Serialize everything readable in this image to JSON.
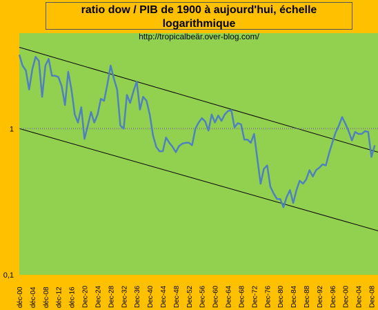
{
  "header": {
    "title": "ratio dow / PIB de 1900 à aujourd'hui, échelle logarithmique",
    "source": "http://tropicalbeär.over-blog.com/"
  },
  "colors": {
    "background": "#ffc000",
    "plot_area": "#92d050",
    "series_line": "#4f81bd",
    "trend_lines": "#000000",
    "reference_line": "#808080"
  },
  "chart_data": {
    "type": "line",
    "title": "ratio dow / PIB de 1900 à aujourd'hui, échelle logarithmique",
    "yscale": "log",
    "ylim": [
      0.1,
      4.5
    ],
    "xlim": [
      1900,
      2010
    ],
    "grid": false,
    "y_ticks": [
      {
        "value": 1,
        "label": "1"
      },
      {
        "value": 0.1,
        "label": "0,1"
      }
    ],
    "x_ticks": [
      {
        "year": 1900,
        "label": "déc-00"
      },
      {
        "year": 1904,
        "label": "déc-04"
      },
      {
        "year": 1908,
        "label": "déc-08"
      },
      {
        "year": 1912,
        "label": "déc-12"
      },
      {
        "year": 1916,
        "label": "déc-16"
      },
      {
        "year": 1920,
        "label": "Dec-20"
      },
      {
        "year": 1924,
        "label": "Dec-24"
      },
      {
        "year": 1928,
        "label": "Dec-28"
      },
      {
        "year": 1932,
        "label": "Dec-32"
      },
      {
        "year": 1936,
        "label": "Dec-36"
      },
      {
        "year": 1940,
        "label": "Dec-40"
      },
      {
        "year": 1944,
        "label": "Dec-44"
      },
      {
        "year": 1948,
        "label": "Dec-48"
      },
      {
        "year": 1952,
        "label": "Dec-52"
      },
      {
        "year": 1956,
        "label": "Dec-56"
      },
      {
        "year": 1960,
        "label": "Dec-60"
      },
      {
        "year": 1964,
        "label": "Dec-64"
      },
      {
        "year": 1968,
        "label": "Dec-68"
      },
      {
        "year": 1972,
        "label": "Dec-72"
      },
      {
        "year": 1976,
        "label": "Dec-76"
      },
      {
        "year": 1980,
        "label": "Dec-80"
      },
      {
        "year": 1984,
        "label": "Dec-84"
      },
      {
        "year": 1988,
        "label": "Dec-88"
      },
      {
        "year": 1992,
        "label": "Dec-92"
      },
      {
        "year": 1996,
        "label": "Dec-96"
      },
      {
        "year": 2000,
        "label": "Dec-00"
      },
      {
        "year": 2004,
        "label": "Dec-04"
      },
      {
        "year": 2008,
        "label": "Dec-08"
      }
    ],
    "series": [
      {
        "x": [
          1900,
          1901,
          1902,
          1903,
          1904,
          1905,
          1906,
          1907,
          1908,
          1909,
          1910,
          1911,
          1912,
          1913,
          1914,
          1915,
          1916,
          1917,
          1918,
          1919,
          1920,
          1921,
          1922,
          1923,
          1924,
          1925,
          1926,
          1927,
          1928,
          1929,
          1930,
          1931,
          1932,
          1933,
          1934,
          1935,
          1936,
          1937,
          1938,
          1939,
          1940,
          1941,
          1942,
          1943,
          1944,
          1945,
          1946,
          1947,
          1948,
          1949,
          1950,
          1951,
          1952,
          1953,
          1954,
          1955,
          1956,
          1957,
          1958,
          1959,
          1960,
          1961,
          1962,
          1963,
          1964,
          1965,
          1966,
          1967,
          1968,
          1969,
          1970,
          1971,
          1972,
          1973,
          1974,
          1975,
          1976,
          1977,
          1978,
          1979,
          1980,
          1981,
          1982,
          1983,
          1984,
          1985,
          1986,
          1987,
          1988,
          1989,
          1990,
          1991,
          1992,
          1993,
          1994,
          1995,
          1996,
          1997,
          1998,
          1999,
          2000,
          2001,
          2002,
          2003,
          2004,
          2005,
          2006,
          2007,
          2008,
          2009
        ],
        "values": [
          3.2,
          2.7,
          2.5,
          1.85,
          2.55,
          3.1,
          2.9,
          1.65,
          2.7,
          3.0,
          2.3,
          2.3,
          2.25,
          1.95,
          1.45,
          2.45,
          1.85,
          1.25,
          1.1,
          1.4,
          0.85,
          1.05,
          1.3,
          1.1,
          1.25,
          1.6,
          1.55,
          2.0,
          2.7,
          2.2,
          1.85,
          1.05,
          1.0,
          1.7,
          1.5,
          1.8,
          2.1,
          1.35,
          1.65,
          1.55,
          1.25,
          0.9,
          0.75,
          0.7,
          0.7,
          0.87,
          0.8,
          0.75,
          0.69,
          0.76,
          0.79,
          0.8,
          0.8,
          0.77,
          1.0,
          1.1,
          1.18,
          1.12,
          0.97,
          1.25,
          1.1,
          1.23,
          1.13,
          1.25,
          1.32,
          1.34,
          1.02,
          1.09,
          1.07,
          0.84,
          0.84,
          0.8,
          0.92,
          0.62,
          0.42,
          0.53,
          0.56,
          0.4,
          0.36,
          0.33,
          0.33,
          0.29,
          0.34,
          0.38,
          0.31,
          0.38,
          0.44,
          0.42,
          0.45,
          0.52,
          0.47,
          0.52,
          0.54,
          0.57,
          0.56,
          0.68,
          0.8,
          0.94,
          1.05,
          1.2,
          1.08,
          0.96,
          0.83,
          0.95,
          0.92,
          0.92,
          0.96,
          0.95,
          0.64,
          0.77
        ]
      }
    ],
    "trend_lines": [
      {
        "from": {
          "x": 1900,
          "y": 3.6
        },
        "to": {
          "x": 2010,
          "y": 0.69
        }
      },
      {
        "from": {
          "x": 1900,
          "y": 1.0
        },
        "to": {
          "x": 2010,
          "y": 0.2
        }
      }
    ],
    "reference_line": {
      "y": 1
    }
  }
}
